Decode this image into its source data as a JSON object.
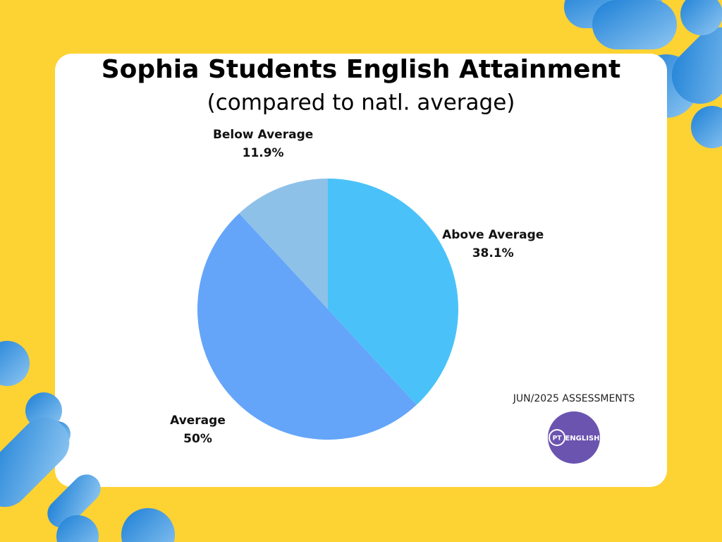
{
  "chart_data": {
    "type": "pie",
    "title": "Sophia Students English Attainment",
    "subtitle": "(compared to natl. average)",
    "categories": [
      "Above Average",
      "Average",
      "Below Average"
    ],
    "values": [
      38.1,
      50,
      11.9
    ],
    "value_labels": [
      "38.1%",
      "50%",
      "11.9%"
    ],
    "colors": [
      "#4ac2f9",
      "#64a5f9",
      "#8ec1e8"
    ]
  },
  "footer": "JUN/2025 ASSESSMENTS",
  "logo": {
    "left": "PT",
    "right": "ENGLISH"
  }
}
